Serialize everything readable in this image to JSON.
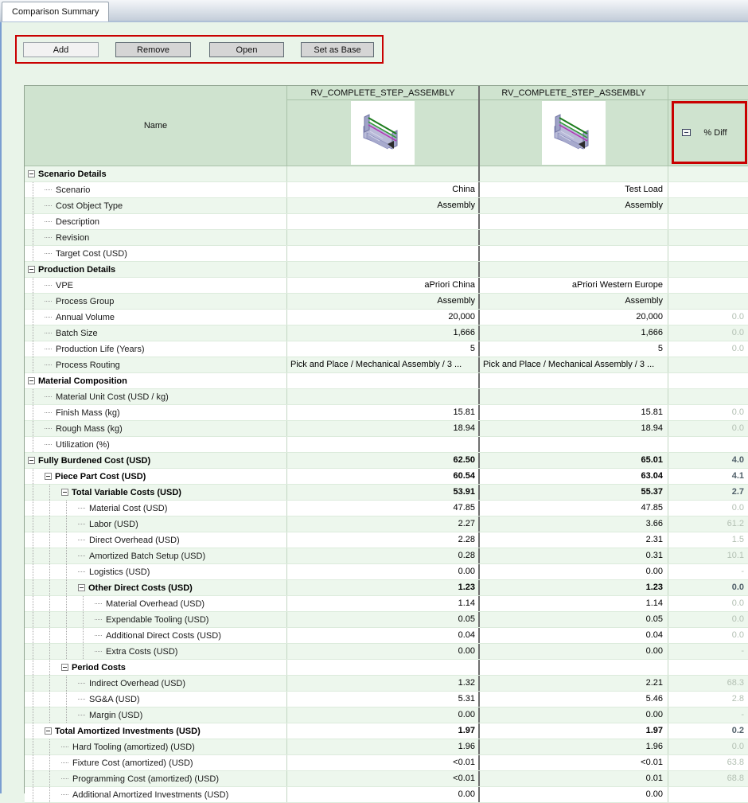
{
  "tab": {
    "label": "Comparison Summary"
  },
  "toolbar": {
    "buttons": [
      {
        "label": "Add"
      },
      {
        "label": "Remove"
      },
      {
        "label": "Open"
      },
      {
        "label": "Set as Base"
      }
    ]
  },
  "colors": {
    "highlight_red": "#c90000",
    "header_green": "#cfe3cf",
    "row_alt_green": "#edf7ed",
    "diff_text": "#b3c0b3",
    "diff_text_bold": "#51606a"
  },
  "table": {
    "name_header": "Name",
    "col1_title": "RV_COMPLETE_STEP_ASSEMBLY",
    "col2_title": "RV_COMPLETE_STEP_ASSEMBLY",
    "diff_header": "% Diff",
    "thumbnail_name": "assembly-3d-thumbnail",
    "rows": [
      {
        "label": "Scenario Details",
        "level": 0,
        "bold": true,
        "expander": true,
        "v1": "",
        "v2": "",
        "diff": ""
      },
      {
        "label": "Scenario",
        "level": 1,
        "v1": "China",
        "v2": "Test Load",
        "diff": ""
      },
      {
        "label": "Cost Object Type",
        "level": 1,
        "v1": "Assembly",
        "v2": "Assembly",
        "diff": ""
      },
      {
        "label": "Description",
        "level": 1,
        "v1": "",
        "v2": "",
        "diff": ""
      },
      {
        "label": "Revision",
        "level": 1,
        "v1": "",
        "v2": "",
        "diff": ""
      },
      {
        "label": "Target Cost (USD)",
        "level": 1,
        "v1": "",
        "v2": "",
        "diff": ""
      },
      {
        "label": "Production Details",
        "level": 0,
        "bold": true,
        "expander": true,
        "v1": "",
        "v2": "",
        "diff": ""
      },
      {
        "label": "VPE",
        "level": 1,
        "v1": "aPriori China",
        "v2": "aPriori Western Europe",
        "diff": ""
      },
      {
        "label": "Process Group",
        "level": 1,
        "v1": "Assembly",
        "v2": "Assembly",
        "diff": ""
      },
      {
        "label": "Annual Volume",
        "level": 1,
        "v1": "20,000",
        "v2": "20,000",
        "diff": "0.0"
      },
      {
        "label": "Batch Size",
        "level": 1,
        "v1": "1,666",
        "v2": "1,666",
        "diff": "0.0"
      },
      {
        "label": "Production Life (Years)",
        "level": 1,
        "v1": "5",
        "v2": "5",
        "diff": "0.0"
      },
      {
        "label": "Process Routing",
        "level": 1,
        "align": "left",
        "v1": "Pick and Place / Mechanical Assembly / 3 ...",
        "v2": "Pick and Place / Mechanical Assembly / 3 ...",
        "diff": ""
      },
      {
        "label": "Material Composition",
        "level": 0,
        "bold": true,
        "expander": true,
        "v1": "",
        "v2": "",
        "diff": ""
      },
      {
        "label": "Material Unit Cost (USD / kg)",
        "level": 1,
        "v1": "",
        "v2": "",
        "diff": ""
      },
      {
        "label": "Finish Mass (kg)",
        "level": 1,
        "v1": "15.81",
        "v2": "15.81",
        "diff": "0.0"
      },
      {
        "label": "Rough Mass (kg)",
        "level": 1,
        "v1": "18.94",
        "v2": "18.94",
        "diff": "0.0"
      },
      {
        "label": "Utilization (%)",
        "level": 1,
        "v1": "",
        "v2": "",
        "diff": ""
      },
      {
        "label": "Fully Burdened Cost (USD)",
        "level": 0,
        "bold": true,
        "expander": true,
        "v1": "62.50",
        "v2": "65.01",
        "diff": "4.0"
      },
      {
        "label": "Piece Part Cost (USD)",
        "level": 1,
        "bold": true,
        "expander": true,
        "v1": "60.54",
        "v2": "63.04",
        "diff": "4.1"
      },
      {
        "label": "Total Variable Costs (USD)",
        "level": 2,
        "bold": true,
        "expander": true,
        "v1": "53.91",
        "v2": "55.37",
        "diff": "2.7"
      },
      {
        "label": "Material Cost (USD)",
        "level": 3,
        "v1": "47.85",
        "v2": "47.85",
        "diff": "0.0"
      },
      {
        "label": "Labor (USD)",
        "level": 3,
        "v1": "2.27",
        "v2": "3.66",
        "diff": "61.2"
      },
      {
        "label": "Direct Overhead (USD)",
        "level": 3,
        "v1": "2.28",
        "v2": "2.31",
        "diff": "1.5"
      },
      {
        "label": "Amortized Batch Setup (USD)",
        "level": 3,
        "v1": "0.28",
        "v2": "0.31",
        "diff": "10.1"
      },
      {
        "label": "Logistics (USD)",
        "level": 3,
        "v1": "0.00",
        "v2": "0.00",
        "diff": "-"
      },
      {
        "label": "Other Direct Costs (USD)",
        "level": 3,
        "bold": true,
        "expander": true,
        "v1": "1.23",
        "v2": "1.23",
        "diff": "0.0"
      },
      {
        "label": "Material Overhead (USD)",
        "level": 4,
        "v1": "1.14",
        "v2": "1.14",
        "diff": "0.0"
      },
      {
        "label": "Expendable Tooling (USD)",
        "level": 4,
        "v1": "0.05",
        "v2": "0.05",
        "diff": "0.0"
      },
      {
        "label": "Additional Direct Costs (USD)",
        "level": 4,
        "v1": "0.04",
        "v2": "0.04",
        "diff": "0.0"
      },
      {
        "label": "Extra Costs (USD)",
        "level": 4,
        "v1": "0.00",
        "v2": "0.00",
        "diff": "-"
      },
      {
        "label": "Period Costs",
        "level": 2,
        "bold": true,
        "expander": true,
        "v1": "",
        "v2": "",
        "diff": ""
      },
      {
        "label": "Indirect Overhead (USD)",
        "level": 3,
        "v1": "1.32",
        "v2": "2.21",
        "diff": "68.3"
      },
      {
        "label": "SG&A (USD)",
        "level": 3,
        "v1": "5.31",
        "v2": "5.46",
        "diff": "2.8"
      },
      {
        "label": "Margin (USD)",
        "level": 3,
        "v1": "0.00",
        "v2": "0.00",
        "diff": "-"
      },
      {
        "label": "Total Amortized Investments (USD)",
        "level": 1,
        "bold": true,
        "expander": true,
        "v1": "1.97",
        "v2": "1.97",
        "diff": "0.2"
      },
      {
        "label": "Hard Tooling (amortized) (USD)",
        "level": 2,
        "v1": "1.96",
        "v2": "1.96",
        "diff": "0.0"
      },
      {
        "label": "Fixture Cost (amortized) (USD)",
        "level": 2,
        "v1": "<0.01",
        "v2": "<0.01",
        "diff": "63.8"
      },
      {
        "label": "Programming Cost (amortized) (USD)",
        "level": 2,
        "v1": "<0.01",
        "v2": "0.01",
        "diff": "68.8"
      },
      {
        "label": "Additional Amortized Investments (USD)",
        "level": 2,
        "v1": "0.00",
        "v2": "0.00",
        "diff": ""
      }
    ]
  }
}
